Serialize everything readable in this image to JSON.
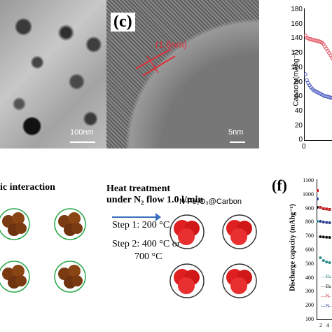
{
  "panel_c": {
    "label": "(c)",
    "scale_left": "100nm",
    "scale_right": "5nm",
    "lattice": "(1.6nm)"
  },
  "plot_top": {
    "ylabel": "Capacity(mAhg⁻¹)",
    "yticks": [
      "180",
      "160",
      "140",
      "120",
      "100",
      "80",
      "60",
      "40",
      "20",
      "0"
    ],
    "xtick0": "0"
  },
  "scheme": {
    "left_title": "ic interaction",
    "heat1": "Heat treatment",
    "heat2": "under N₂ flow 1.0 l/min",
    "step1": "Step 1: 200 °C",
    "step2": "Step 2: 400 °C or",
    "step2b": "700 °C",
    "product": "N-Fe₂O₃@Carbon"
  },
  "panel_f": {
    "label": "(f)",
    "ylabel": "Discharge capacity (mAhg⁻¹)",
    "yticks": [
      "1100",
      "1000",
      "900",
      "800",
      "700",
      "600",
      "500",
      "400",
      "300",
      "200",
      "100"
    ],
    "xticks": [
      "2",
      "4"
    ],
    "legend": [
      "Ba",
      "Ba",
      "N-",
      "N-"
    ]
  },
  "chart_data": [
    {
      "type": "scatter",
      "title": "",
      "xlabel": "",
      "ylabel": "Capacity(mAhg⁻¹)",
      "ylim": [
        0,
        180
      ],
      "series": [
        {
          "x": [
            0,
            1,
            2,
            3,
            4,
            5,
            6,
            7,
            8,
            9,
            10,
            11,
            12,
            13,
            14,
            15,
            16,
            17,
            18,
            19,
            20
          ],
          "values": [
            143,
            140,
            139,
            138,
            138,
            137,
            137,
            136,
            136,
            135,
            135,
            134,
            133,
            131,
            128,
            125,
            122,
            119,
            116,
            113,
            110
          ]
        },
        {
          "x": [
            0,
            1,
            2,
            3,
            4,
            5,
            6,
            7,
            8,
            9,
            10,
            11,
            12,
            13,
            14,
            15,
            16,
            17,
            18,
            19,
            20
          ],
          "values": [
            90,
            82,
            78,
            75,
            72,
            70,
            68,
            67,
            66,
            65,
            64,
            63,
            62,
            61,
            60,
            60,
            59,
            59,
            58,
            58,
            58
          ]
        }
      ]
    },
    {
      "type": "line",
      "title": "",
      "xlabel": "",
      "ylabel": "Discharge capacity (mAhg⁻¹)",
      "ylim": [
        100,
        1100
      ],
      "series": [
        {
          "name": "N-",
          "x": [
            1,
            2,
            3,
            4,
            5
          ],
          "values": [
            1020,
            900,
            890,
            888,
            885
          ]
        },
        {
          "name": "N-",
          "x": [
            1,
            2,
            3,
            4,
            5
          ],
          "values": [
            960,
            800,
            795,
            792,
            790
          ]
        },
        {
          "name": "Ba",
          "x": [
            1,
            2,
            3,
            4,
            5
          ],
          "values": [
            900,
            690,
            688,
            686,
            685
          ]
        },
        {
          "name": "Ba",
          "x": [
            1,
            2,
            3,
            4,
            5
          ],
          "values": [
            800,
            540,
            520,
            510,
            505
          ]
        }
      ]
    }
  ]
}
